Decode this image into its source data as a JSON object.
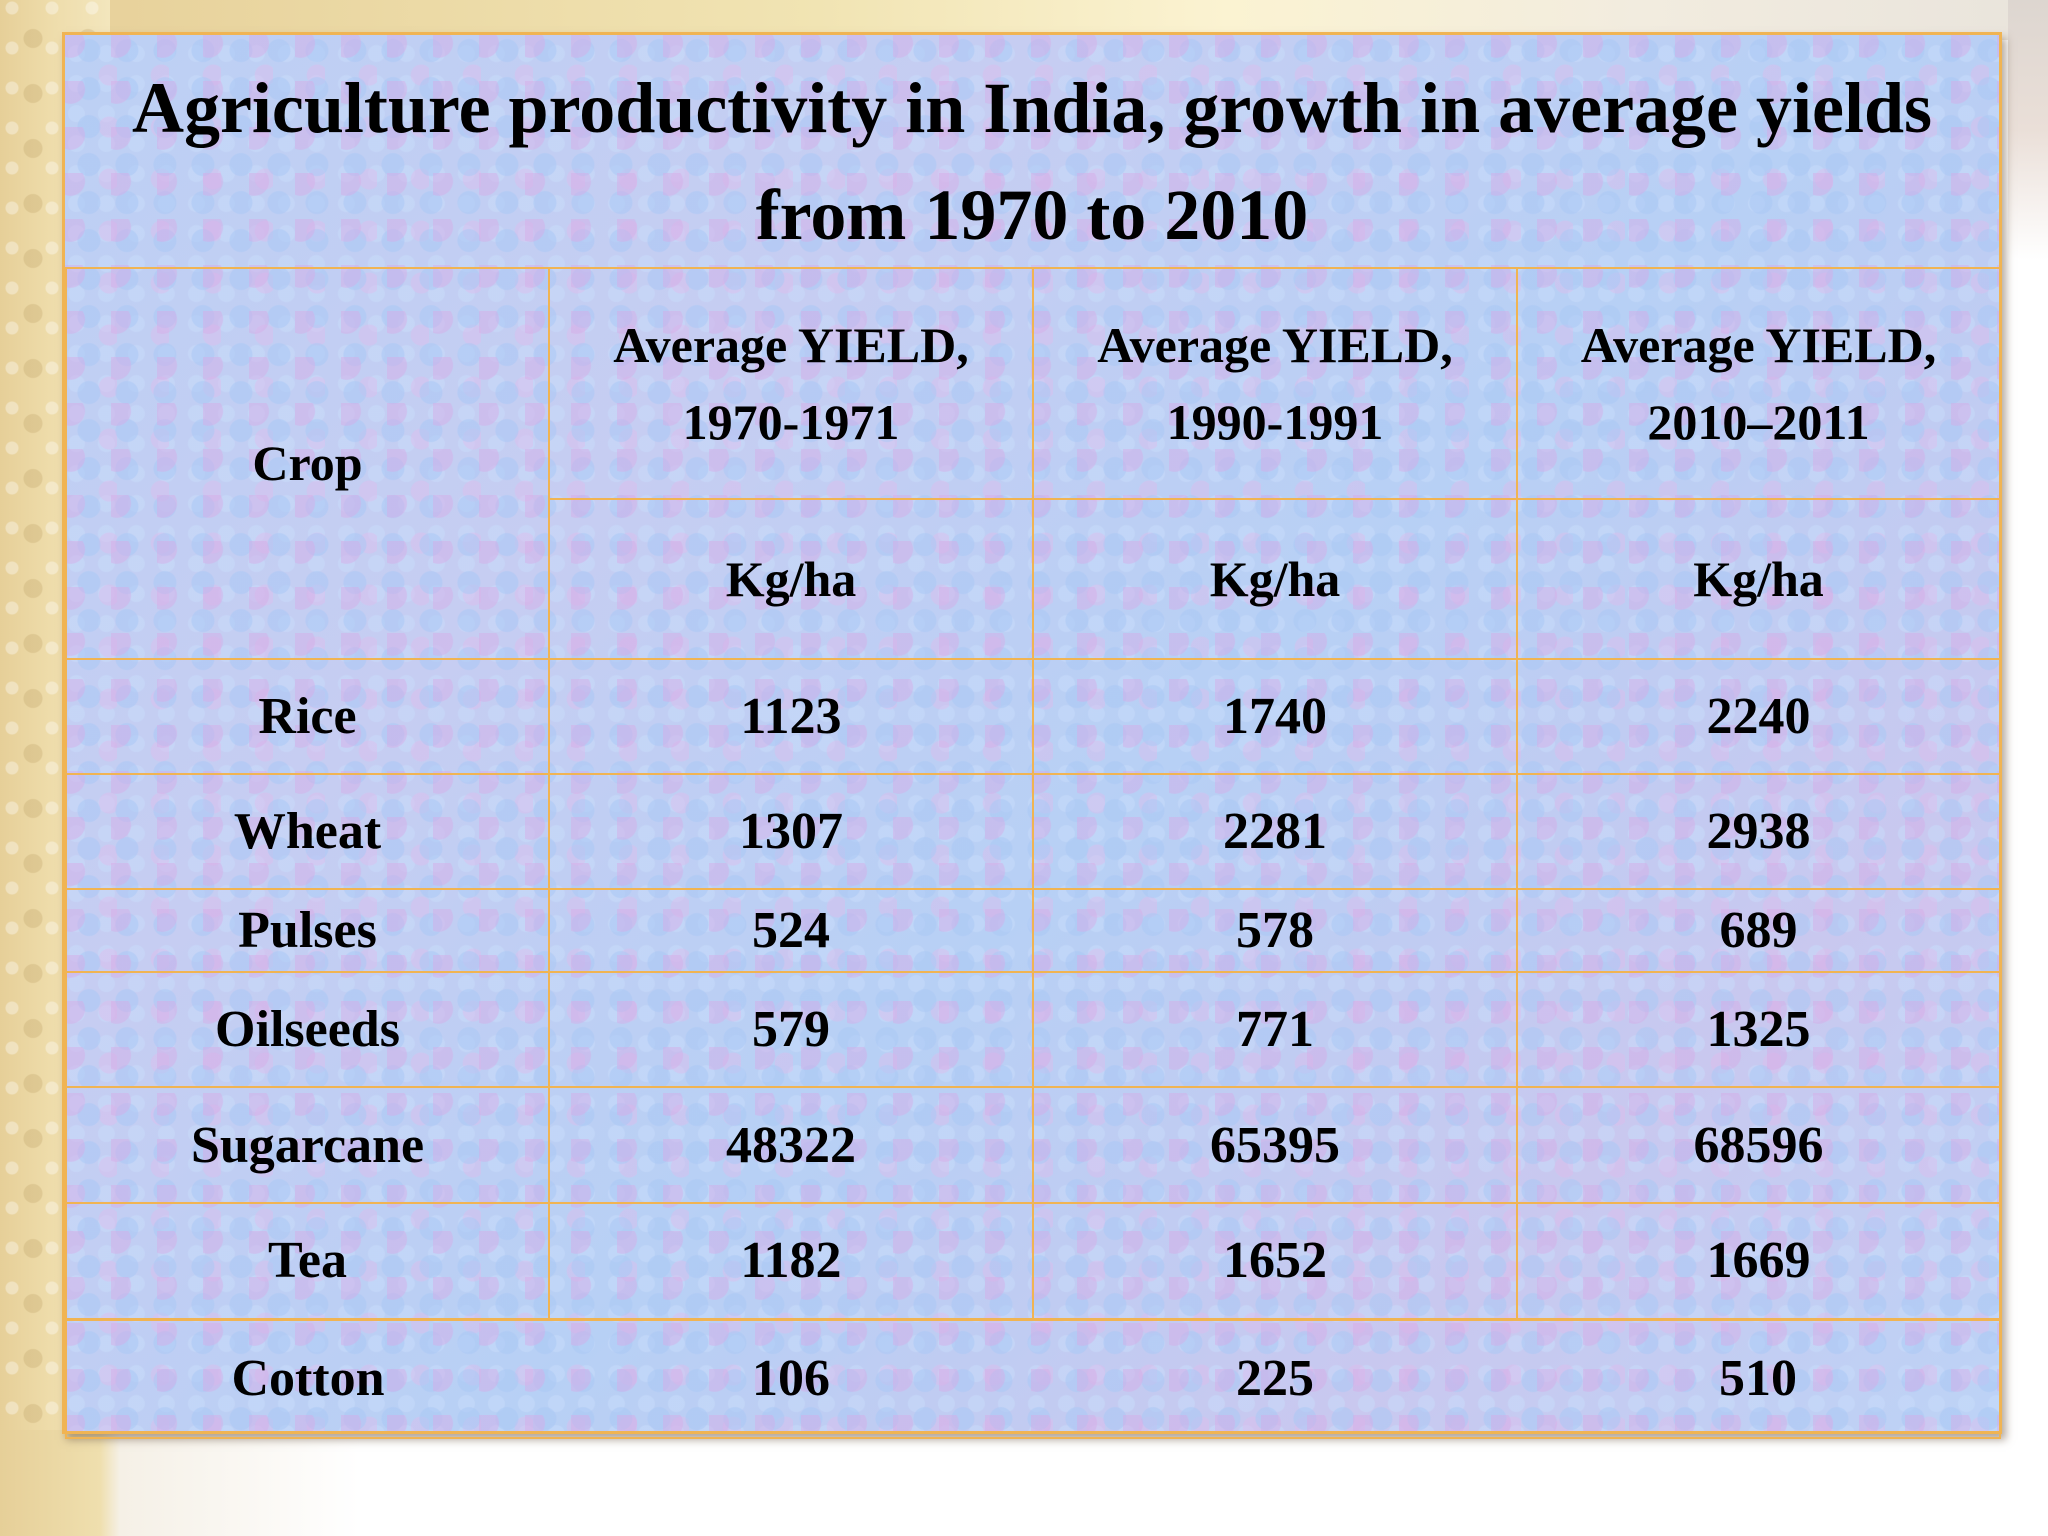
{
  "title": "Agriculture productivity in India, growth in average yields from 1970 to 2010",
  "table": {
    "crop_header": "Crop",
    "period_headers": [
      "Average YIELD, 1970-1971",
      "Average YIELD, 1990-1991",
      "Average YIELD, 2010–2011"
    ],
    "unit_headers": [
      "Kg/ha",
      "Kg/ha",
      "Kg/ha"
    ],
    "rows": [
      {
        "crop": "Rice",
        "values": [
          "1123",
          "1740",
          "2240"
        ]
      },
      {
        "crop": "Wheat",
        "values": [
          "1307",
          "2281",
          "2938"
        ]
      },
      {
        "crop": "Pulses",
        "values": [
          "524",
          "578",
          "689"
        ]
      },
      {
        "crop": "Oilseeds",
        "values": [
          "579",
          "771",
          "1325"
        ]
      },
      {
        "crop": "Sugarcane",
        "values": [
          "48322",
          "65395",
          "68596"
        ]
      },
      {
        "crop": "Tea",
        "values": [
          "1182",
          "1652",
          "1669"
        ]
      },
      {
        "crop": "Cotton",
        "values": [
          "106",
          "225",
          "510"
        ]
      }
    ]
  },
  "colors": {
    "border": "#f0b453",
    "panel": "#bcd0f4",
    "text": "#000000"
  }
}
